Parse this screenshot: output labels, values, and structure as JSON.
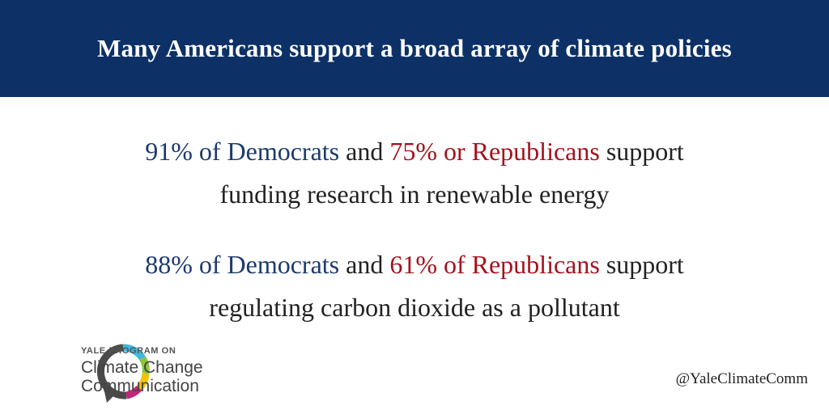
{
  "header": {
    "title": "Many Americans support a broad array of climate policies"
  },
  "statements": [
    {
      "democrats": "91% of Democrats",
      "joiner": "and",
      "republicans": "75% or Republicans",
      "verb": "support",
      "policy": "funding research in renewable energy"
    },
    {
      "democrats": "88% of Democrats",
      "joiner": "and",
      "republicans": "61% of Republicans",
      "verb": "support",
      "policy": "regulating carbon dioxide as a pollutant"
    }
  ],
  "logo": {
    "kicker": "YALE PROGRAM ON",
    "line1": "Climate Change",
    "line2": "Communication"
  },
  "handle": "@YaleClimateComm"
}
